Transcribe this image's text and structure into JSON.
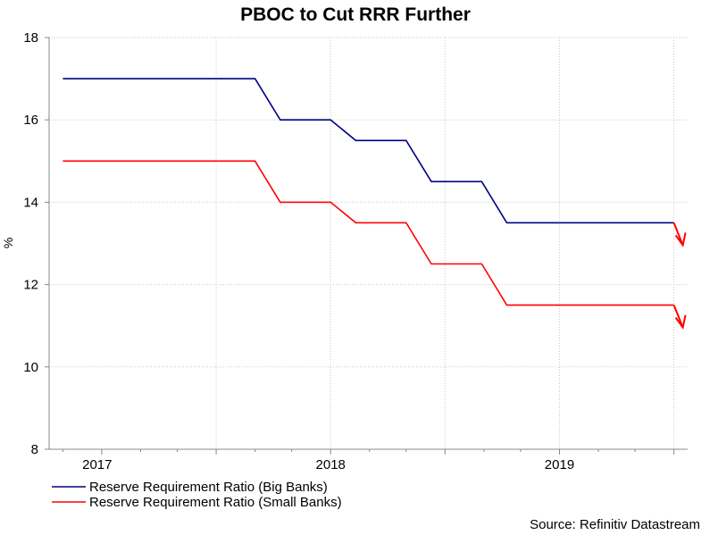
{
  "chart_data": {
    "type": "line",
    "title": "PBOC to Cut RRR Further",
    "ylabel": "%",
    "xlabel": "",
    "ylim": [
      8,
      18
    ],
    "yticks": [
      "8",
      "10",
      "12",
      "14",
      "16",
      "18"
    ],
    "x_tick_labels": [
      {
        "label": "2017",
        "x": 2017.0
      },
      {
        "label": "2018",
        "x": 2018.0
      },
      {
        "label": "2019",
        "x": 2019.0
      }
    ],
    "xlim": [
      2016.77,
      2019.56
    ],
    "grid": true,
    "legend_position": "bottom-left",
    "series": [
      {
        "name": "Reserve Requirement Ratio (Big Banks)",
        "color": "#000080",
        "x": [
          2016.83,
          2017.67,
          2017.78,
          2018.0,
          2018.11,
          2018.33,
          2018.44,
          2018.66,
          2018.77,
          2019.0,
          2019.5
        ],
        "y": [
          17,
          17,
          16,
          16,
          15.5,
          15.5,
          14.5,
          14.5,
          13.5,
          13.5,
          13.5
        ]
      },
      {
        "name": "Reserve Requirement Ratio (Small Banks)",
        "color": "#ff0000",
        "x": [
          2016.83,
          2017.67,
          2017.78,
          2018.0,
          2018.11,
          2018.33,
          2018.44,
          2018.66,
          2018.77,
          2019.0,
          2019.5
        ],
        "y": [
          15,
          15,
          14,
          14,
          13.5,
          13.5,
          12.5,
          12.5,
          11.5,
          11.5,
          11.5
        ]
      }
    ],
    "annotations": {
      "arrows": [
        {
          "series": 0,
          "color": "#ff0000",
          "direction": "down"
        },
        {
          "series": 1,
          "color": "#ff0000",
          "direction": "down"
        }
      ]
    },
    "source": "Source: Refinitiv Datastream"
  }
}
